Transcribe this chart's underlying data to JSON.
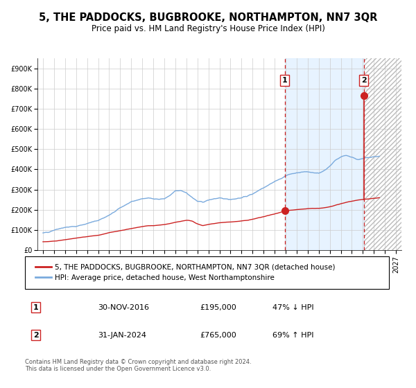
{
  "title": "5, THE PADDOCKS, BUGBROOKE, NORTHAMPTON, NN7 3QR",
  "subtitle": "Price paid vs. HM Land Registry's House Price Index (HPI)",
  "xlim_start": 1994.5,
  "xlim_end": 2027.5,
  "ylim": [
    0,
    950000
  ],
  "yticks": [
    0,
    100000,
    200000,
    300000,
    400000,
    500000,
    600000,
    700000,
    800000,
    900000
  ],
  "ytick_labels": [
    "£0",
    "£100K",
    "£200K",
    "£300K",
    "£400K",
    "£500K",
    "£600K",
    "£700K",
    "£800K",
    "£900K"
  ],
  "xticks": [
    1995,
    1996,
    1997,
    1998,
    1999,
    2000,
    2001,
    2002,
    2003,
    2004,
    2005,
    2006,
    2007,
    2008,
    2009,
    2010,
    2011,
    2012,
    2013,
    2014,
    2015,
    2016,
    2017,
    2018,
    2019,
    2020,
    2021,
    2022,
    2023,
    2024,
    2025,
    2026,
    2027
  ],
  "sale1_x": 2016.917,
  "sale1_y": 195000,
  "sale1_label": "1",
  "sale2_x": 2024.083,
  "sale2_y": 765000,
  "sale2_label": "2",
  "sale1_date": "30-NOV-2016",
  "sale1_price": "£195,000",
  "sale1_hpi": "47% ↓ HPI",
  "sale2_date": "31-JAN-2024",
  "sale2_price": "£765,000",
  "sale2_hpi": "69% ↑ HPI",
  "hpi_line_color": "#7aaadd",
  "price_line_color": "#cc2222",
  "marker_color": "#cc2222",
  "dashed_line_color": "#cc2222",
  "shaded_region_color": "#ddeeff",
  "hatch_region_color": "#e8e8e8",
  "grid_color": "#cccccc",
  "background_color": "#ffffff",
  "title_fontsize": 10.5,
  "subtitle_fontsize": 8.5,
  "tick_fontsize": 7,
  "legend_fontsize": 7.5,
  "annotation_fontsize": 8,
  "footer_fontsize": 6
}
